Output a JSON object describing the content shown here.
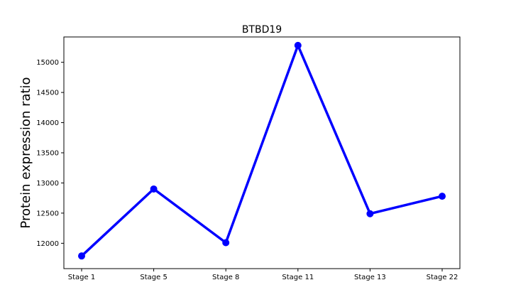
{
  "chart_data": {
    "type": "line",
    "title": "BTBD19",
    "xlabel": "",
    "ylabel": "Protein expression ratio",
    "categories": [
      "Stage 1",
      "Stage 5",
      "Stage 8",
      "Stage 11",
      "Stage 13",
      "Stage 22"
    ],
    "series": [
      {
        "values": [
          11790,
          12900,
          12010,
          15280,
          12490,
          12780
        ]
      }
    ],
    "ylim": [
      11580,
      15420
    ],
    "yticks": [
      12000,
      12500,
      13000,
      13500,
      14000,
      14500,
      15000
    ],
    "ytick_labels": [
      "12000",
      "12500",
      "13000",
      "13500",
      "14000",
      "14500",
      "15000"
    ],
    "grid": false,
    "legend": false,
    "line_color": "#0000ff",
    "marker": "circle"
  }
}
